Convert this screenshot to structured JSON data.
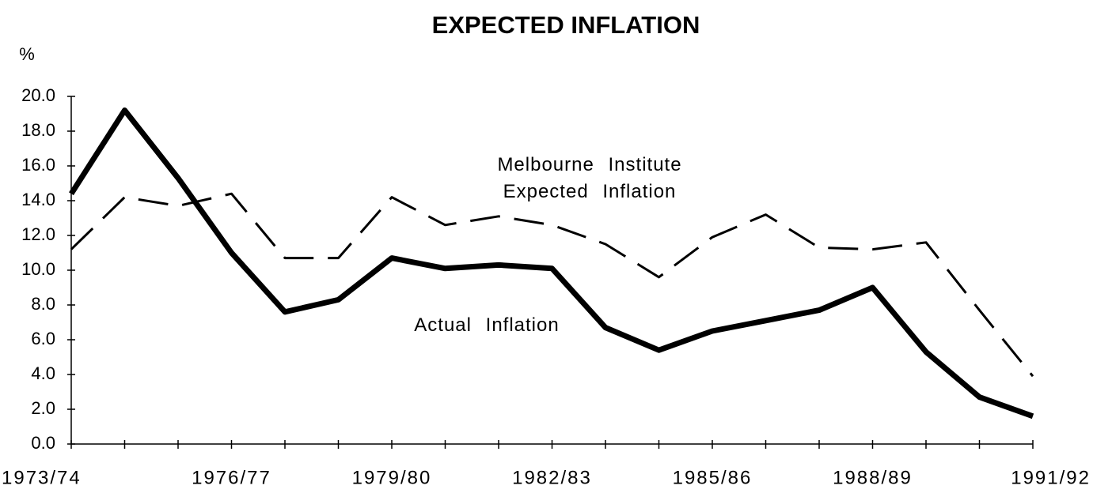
{
  "chart_data": {
    "type": "line",
    "title": "EXPECTED INFLATION",
    "y_label": "%",
    "categories": [
      "1973/74",
      null,
      null,
      "1976/77",
      null,
      null,
      "1979/80",
      null,
      null,
      "1982/83",
      null,
      null,
      "1985/86",
      null,
      null,
      "1988/89",
      null,
      null,
      "1991/92"
    ],
    "series": [
      {
        "name": "Actual Inflation",
        "color": "#000000",
        "dashed": false,
        "values": [
          14.4,
          19.2,
          15.3,
          11.0,
          7.6,
          8.3,
          10.7,
          10.1,
          10.3,
          10.1,
          6.7,
          5.4,
          6.5,
          7.1,
          7.7,
          9.0,
          5.3,
          2.7,
          1.6
        ]
      },
      {
        "name": "Melbourne Institute Expected Inflation",
        "color": "#000000",
        "dashed": true,
        "values": [
          11.2,
          14.2,
          13.7,
          14.4,
          10.7,
          10.7,
          14.2,
          12.6,
          13.1,
          12.6,
          11.5,
          9.6,
          11.9,
          13.2,
          11.3,
          11.2,
          11.6,
          7.7,
          3.9
        ]
      }
    ],
    "ylim": [
      0,
      20
    ],
    "yticks": [
      {
        "value": 0,
        "label": "0.0"
      },
      {
        "value": 2,
        "label": "2.0"
      },
      {
        "value": 4,
        "label": "4.0"
      },
      {
        "value": 6,
        "label": "6.0"
      },
      {
        "value": 8,
        "label": "8.0"
      },
      {
        "value": 10,
        "label": "10.0"
      },
      {
        "value": 12,
        "label": "12.0"
      },
      {
        "value": 14,
        "label": "14.0"
      },
      {
        "value": 16,
        "label": "16.0"
      },
      {
        "value": 18,
        "label": "18.0"
      },
      {
        "value": 20,
        "label": "20.0"
      }
    ],
    "grid": false
  }
}
